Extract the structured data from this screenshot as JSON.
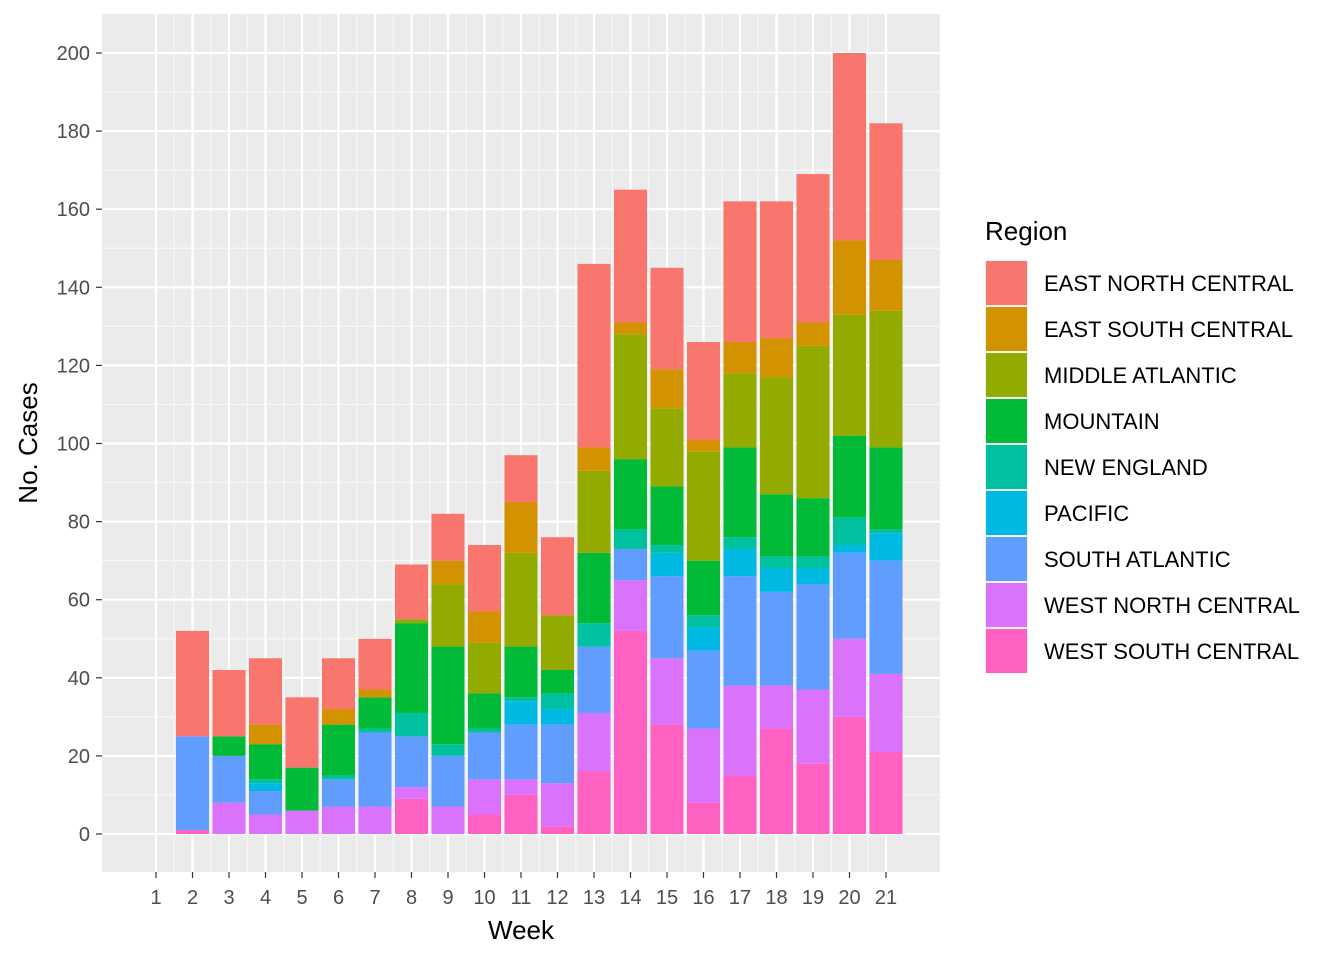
{
  "chart_data": {
    "type": "bar",
    "stacked": true,
    "xlabel": "Week",
    "ylabel": "No. Cases",
    "ylim": [
      -10,
      210
    ],
    "yticks": [
      0,
      20,
      40,
      60,
      80,
      100,
      120,
      140,
      160,
      180,
      200
    ],
    "categories": [
      "1",
      "2",
      "3",
      "4",
      "5",
      "6",
      "7",
      "8",
      "9",
      "10",
      "11",
      "12",
      "13",
      "14",
      "15",
      "16",
      "17",
      "18",
      "19",
      "20",
      "21"
    ],
    "grid": true,
    "legend_position": "right",
    "legend_title": "Region",
    "series": [
      {
        "name": "WEST SOUTH CENTRAL",
        "color": "#FF61C3",
        "values": [
          0,
          1,
          0,
          0,
          0,
          0,
          0,
          9,
          0,
          5,
          10,
          2,
          16,
          52,
          28,
          8,
          15,
          27,
          18,
          30,
          21
        ]
      },
      {
        "name": "WEST NORTH CENTRAL",
        "color": "#DB72FB",
        "values": [
          0,
          0,
          8,
          5,
          6,
          7,
          7,
          3,
          7,
          9,
          4,
          11,
          15,
          13,
          17,
          19,
          23,
          11,
          19,
          20,
          20
        ]
      },
      {
        "name": "SOUTH ATLANTIC",
        "color": "#619CFF",
        "values": [
          0,
          24,
          12,
          6,
          0,
          7,
          19,
          13,
          13,
          12,
          14,
          15,
          17,
          8,
          21,
          20,
          28,
          24,
          27,
          22,
          29
        ]
      },
      {
        "name": "PACIFIC",
        "color": "#00B9E3",
        "values": [
          0,
          0,
          0,
          2,
          0,
          0,
          0,
          0,
          0,
          0,
          6,
          4,
          0,
          0,
          6,
          6,
          7,
          6,
          4,
          2,
          7
        ]
      },
      {
        "name": "NEW ENGLAND",
        "color": "#00C19F",
        "values": [
          0,
          0,
          0,
          1,
          0,
          1,
          1,
          6,
          3,
          1,
          1,
          4,
          6,
          5,
          2,
          3,
          3,
          3,
          3,
          7,
          1
        ]
      },
      {
        "name": "MOUNTAIN",
        "color": "#00BA38",
        "values": [
          0,
          0,
          5,
          9,
          11,
          13,
          8,
          23,
          25,
          9,
          13,
          6,
          18,
          18,
          15,
          14,
          23,
          16,
          15,
          21,
          21
        ]
      },
      {
        "name": "MIDDLE ATLANTIC",
        "color": "#93AA00",
        "values": [
          0,
          0,
          0,
          0,
          0,
          0,
          0,
          1,
          16,
          13,
          24,
          14,
          21,
          32,
          20,
          28,
          19,
          30,
          39,
          31,
          35
        ]
      },
      {
        "name": "EAST SOUTH CENTRAL",
        "color": "#D39200",
        "values": [
          0,
          0,
          0,
          5,
          0,
          4,
          2,
          0,
          6,
          8,
          13,
          0,
          6,
          3,
          10,
          3,
          8,
          10,
          6,
          19,
          13
        ]
      },
      {
        "name": "EAST NORTH CENTRAL",
        "color": "#F8766D",
        "values": [
          0,
          27,
          17,
          17,
          18,
          13,
          13,
          14,
          12,
          17,
          12,
          20,
          47,
          34,
          26,
          25,
          36,
          35,
          38,
          48,
          35
        ]
      }
    ],
    "legend_entries": [
      {
        "name": "EAST NORTH CENTRAL",
        "color": "#F8766D"
      },
      {
        "name": "EAST SOUTH CENTRAL",
        "color": "#D39200"
      },
      {
        "name": "MIDDLE ATLANTIC",
        "color": "#93AA00"
      },
      {
        "name": "MOUNTAIN",
        "color": "#00BA38"
      },
      {
        "name": "NEW ENGLAND",
        "color": "#00C19F"
      },
      {
        "name": "PACIFIC",
        "color": "#00B9E3"
      },
      {
        "name": "SOUTH ATLANTIC",
        "color": "#619CFF"
      },
      {
        "name": "WEST NORTH CENTRAL",
        "color": "#DB72FB"
      },
      {
        "name": "WEST SOUTH CENTRAL",
        "color": "#FF61C3"
      }
    ]
  }
}
